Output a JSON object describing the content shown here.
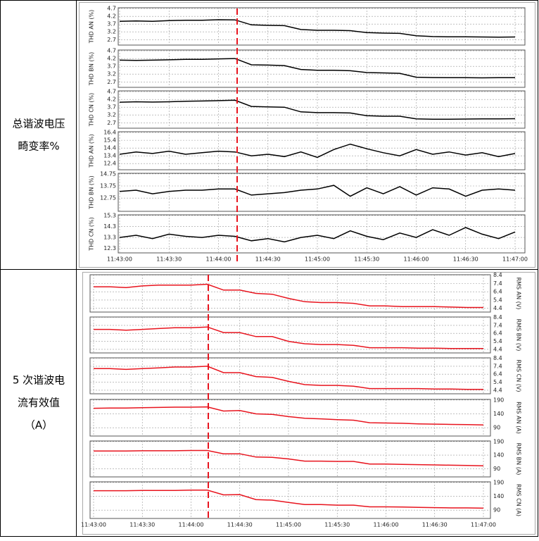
{
  "table": {
    "rows": [
      {
        "label": [
          "总谐波电压",
          "畸变率%"
        ]
      },
      {
        "label": [
          "5 次谐波电",
          "流有效值",
          "（A）"
        ]
      }
    ]
  },
  "chart_data": [
    {
      "type": "line",
      "ylabel": "THD AN (%)",
      "yaxis_side": "left",
      "color": "#000000",
      "ylim": [
        2.35,
        4.75
      ],
      "yticks": [
        4.7,
        4.2,
        3.7,
        3.2,
        2.7
      ],
      "grid": true,
      "x": [
        "11:43:00",
        "11:43:10",
        "11:43:20",
        "11:43:30",
        "11:43:40",
        "11:43:50",
        "11:44:00",
        "11:44:10",
        "11:44:20",
        "11:44:30",
        "11:44:40",
        "11:44:50",
        "11:45:00",
        "11:45:10",
        "11:45:20",
        "11:45:30",
        "11:45:40",
        "11:45:50",
        "11:46:00",
        "11:46:10",
        "11:46:20",
        "11:46:30",
        "11:46:40",
        "11:46:50",
        "11:47:00"
      ],
      "values": [
        3.88,
        3.9,
        3.88,
        3.92,
        3.95,
        3.95,
        3.98,
        3.97,
        3.65,
        3.62,
        3.6,
        3.35,
        3.3,
        3.3,
        3.28,
        3.15,
        3.12,
        3.1,
        2.95,
        2.9,
        2.88,
        2.88,
        2.87,
        2.86,
        2.87
      ]
    },
    {
      "type": "line",
      "ylabel": "THD BN (%)",
      "yaxis_side": "left",
      "color": "#000000",
      "ylim": [
        2.35,
        4.75
      ],
      "yticks": [
        4.7,
        4.2,
        3.7,
        3.2,
        2.7
      ],
      "grid": true,
      "x": [
        "11:43:00",
        "11:43:10",
        "11:43:20",
        "11:43:30",
        "11:43:40",
        "11:43:50",
        "11:44:00",
        "11:44:10",
        "11:44:20",
        "11:44:30",
        "11:44:40",
        "11:44:50",
        "11:45:00",
        "11:45:10",
        "11:45:20",
        "11:45:30",
        "11:45:40",
        "11:45:50",
        "11:46:00",
        "11:46:10",
        "11:46:20",
        "11:46:30",
        "11:46:40",
        "11:46:50",
        "11:47:00"
      ],
      "values": [
        4.1,
        4.08,
        4.1,
        4.12,
        4.15,
        4.15,
        4.18,
        4.2,
        3.8,
        3.78,
        3.75,
        3.5,
        3.45,
        3.45,
        3.42,
        3.3,
        3.28,
        3.25,
        3.0,
        2.98,
        2.97,
        2.97,
        2.96,
        2.97,
        2.97
      ]
    },
    {
      "type": "line",
      "ylabel": "THD CN (%)",
      "yaxis_side": "left",
      "color": "#000000",
      "ylim": [
        2.35,
        4.75
      ],
      "yticks": [
        4.7,
        4.2,
        3.7,
        3.2,
        2.7
      ],
      "grid": true,
      "x": [
        "11:43:00",
        "11:43:10",
        "11:43:20",
        "11:43:30",
        "11:43:40",
        "11:43:50",
        "11:44:00",
        "11:44:10",
        "11:44:20",
        "11:44:30",
        "11:44:40",
        "11:44:50",
        "11:45:00",
        "11:45:10",
        "11:45:20",
        "11:45:30",
        "11:45:40",
        "11:45:50",
        "11:46:00",
        "11:46:10",
        "11:46:20",
        "11:46:30",
        "11:46:40",
        "11:46:50",
        "11:47:00"
      ],
      "values": [
        4.02,
        4.05,
        4.03,
        4.05,
        4.08,
        4.1,
        4.12,
        4.15,
        3.75,
        3.72,
        3.7,
        3.4,
        3.35,
        3.35,
        3.33,
        3.15,
        3.12,
        3.12,
        2.95,
        2.93,
        2.93,
        2.94,
        2.95,
        2.95,
        2.96
      ]
    },
    {
      "type": "line",
      "ylabel": "THD AN (%)",
      "yaxis_side": "left",
      "color": "#000000",
      "ylim": [
        11.6,
        16.5
      ],
      "yticks": [
        16.4,
        15.4,
        14.4,
        13.4,
        12.4
      ],
      "grid": true,
      "x": [
        "11:43:00",
        "11:43:10",
        "11:43:20",
        "11:43:30",
        "11:43:40",
        "11:43:50",
        "11:44:00",
        "11:44:10",
        "11:44:20",
        "11:44:30",
        "11:44:40",
        "11:44:50",
        "11:45:00",
        "11:45:10",
        "11:45:20",
        "11:45:30",
        "11:45:40",
        "11:45:50",
        "11:46:00",
        "11:46:10",
        "11:46:20",
        "11:46:30",
        "11:46:40",
        "11:46:50",
        "11:47:00"
      ],
      "values": [
        13.6,
        13.9,
        13.7,
        14.0,
        13.6,
        13.8,
        14.0,
        13.9,
        13.4,
        13.6,
        13.3,
        13.9,
        13.2,
        14.2,
        14.9,
        14.3,
        13.8,
        13.4,
        14.2,
        13.6,
        13.9,
        13.5,
        13.8,
        13.3,
        13.7
      ]
    },
    {
      "type": "line",
      "ylabel": "THD BN (%)",
      "yaxis_side": "left",
      "color": "#000000",
      "ylim": [
        11.65,
        14.8
      ],
      "yticks": [
        14.75,
        13.75,
        12.75
      ],
      "grid": true,
      "x": [
        "11:43:00",
        "11:43:10",
        "11:43:20",
        "11:43:30",
        "11:43:40",
        "11:43:50",
        "11:44:00",
        "11:44:10",
        "11:44:20",
        "11:44:30",
        "11:44:40",
        "11:44:50",
        "11:45:00",
        "11:45:10",
        "11:45:20",
        "11:45:30",
        "11:45:40",
        "11:45:50",
        "11:46:00",
        "11:46:10",
        "11:46:20",
        "11:46:30",
        "11:46:40",
        "11:46:50",
        "11:47:00"
      ],
      "values": [
        13.3,
        13.4,
        13.1,
        13.3,
        13.4,
        13.4,
        13.5,
        13.5,
        13.0,
        13.1,
        13.2,
        13.4,
        13.5,
        13.8,
        12.9,
        13.6,
        13.1,
        13.7,
        13.0,
        13.6,
        13.5,
        12.9,
        13.4,
        13.5,
        13.4
      ]
    },
    {
      "type": "line",
      "ylabel": "THD CN (%)",
      "yaxis_side": "left",
      "color": "#000000",
      "ylim": [
        11.9,
        15.35
      ],
      "yticks": [
        15.3,
        14.3,
        13.3,
        12.3
      ],
      "grid": true,
      "x": [
        "11:43:00",
        "11:43:10",
        "11:43:20",
        "11:43:30",
        "11:43:40",
        "11:43:50",
        "11:44:00",
        "11:44:10",
        "11:44:20",
        "11:44:30",
        "11:44:40",
        "11:44:50",
        "11:45:00",
        "11:45:10",
        "11:45:20",
        "11:45:30",
        "11:45:40",
        "11:45:50",
        "11:46:00",
        "11:46:10",
        "11:46:20",
        "11:46:30",
        "11:46:40",
        "11:46:50",
        "11:47:00"
      ],
      "values": [
        13.3,
        13.5,
        13.2,
        13.6,
        13.4,
        13.3,
        13.5,
        13.4,
        13.0,
        13.2,
        12.9,
        13.3,
        13.5,
        13.2,
        13.9,
        13.4,
        13.1,
        13.7,
        13.3,
        14.0,
        13.5,
        14.2,
        13.6,
        13.2,
        13.8
      ],
      "xticks": [
        "11:43:00",
        "11:43:30",
        "11:44:00",
        "11:44:30",
        "11:45:00",
        "11:45:30",
        "11:46:00",
        "11:46:30",
        "11:47:00"
      ]
    },
    {
      "type": "line",
      "ylabel": "RMS AN (V)",
      "yaxis_side": "right",
      "color": "#e8141e",
      "ylim": [
        3.95,
        8.45
      ],
      "yticks": [
        8.4,
        7.4,
        6.4,
        5.4,
        4.4
      ],
      "grid": true,
      "x": [
        "11:43:00",
        "11:43:10",
        "11:43:20",
        "11:43:30",
        "11:43:40",
        "11:43:50",
        "11:44:00",
        "11:44:10",
        "11:44:20",
        "11:44:30",
        "11:44:40",
        "11:44:50",
        "11:45:00",
        "11:45:10",
        "11:45:20",
        "11:45:30",
        "11:45:40",
        "11:45:50",
        "11:46:00",
        "11:46:10",
        "11:46:20",
        "11:46:30",
        "11:46:40",
        "11:46:50",
        "11:47:00"
      ],
      "values": [
        7.0,
        7.0,
        6.9,
        7.1,
        7.2,
        7.2,
        7.2,
        7.3,
        6.6,
        6.6,
        6.2,
        6.1,
        5.6,
        5.2,
        5.1,
        5.1,
        5.0,
        4.7,
        4.7,
        4.6,
        4.6,
        4.6,
        4.55,
        4.5,
        4.5
      ]
    },
    {
      "type": "line",
      "ylabel": "RMS BN (V)",
      "yaxis_side": "right",
      "color": "#e8141e",
      "ylim": [
        3.95,
        8.45
      ],
      "yticks": [
        8.4,
        7.4,
        6.4,
        5.4,
        4.4
      ],
      "grid": true,
      "x": [
        "11:43:00",
        "11:43:10",
        "11:43:20",
        "11:43:30",
        "11:43:40",
        "11:43:50",
        "11:44:00",
        "11:44:10",
        "11:44:20",
        "11:44:30",
        "11:44:40",
        "11:44:50",
        "11:45:00",
        "11:45:10",
        "11:45:20",
        "11:45:30",
        "11:45:40",
        "11:45:50",
        "11:46:00",
        "11:46:10",
        "11:46:20",
        "11:46:30",
        "11:46:40",
        "11:46:50",
        "11:47:00"
      ],
      "values": [
        6.9,
        6.9,
        6.8,
        6.9,
        7.0,
        7.1,
        7.1,
        7.2,
        6.5,
        6.5,
        6.0,
        6.0,
        5.4,
        5.1,
        5.0,
        5.0,
        4.9,
        4.6,
        4.6,
        4.6,
        4.55,
        4.55,
        4.5,
        4.5,
        4.5
      ]
    },
    {
      "type": "line",
      "ylabel": "RMS CN (V)",
      "yaxis_side": "right",
      "color": "#e8141e",
      "ylim": [
        3.95,
        8.45
      ],
      "yticks": [
        8.4,
        7.4,
        6.4,
        5.4,
        4.4
      ],
      "grid": true,
      "x": [
        "11:43:00",
        "11:43:10",
        "11:43:20",
        "11:43:30",
        "11:43:40",
        "11:43:50",
        "11:44:00",
        "11:44:10",
        "11:44:20",
        "11:44:30",
        "11:44:40",
        "11:44:50",
        "11:45:00",
        "11:45:10",
        "11:45:20",
        "11:45:30",
        "11:45:40",
        "11:45:50",
        "11:46:00",
        "11:46:10",
        "11:46:20",
        "11:46:30",
        "11:46:40",
        "11:46:50",
        "11:47:00"
      ],
      "values": [
        7.1,
        7.1,
        7.0,
        7.1,
        7.2,
        7.3,
        7.3,
        7.4,
        6.6,
        6.6,
        6.1,
        6.0,
        5.5,
        5.1,
        5.0,
        5.0,
        4.9,
        4.6,
        4.6,
        4.6,
        4.6,
        4.55,
        4.55,
        4.5,
        4.5
      ]
    },
    {
      "type": "line",
      "ylabel": "RMS AN (A)",
      "yaxis_side": "right",
      "color": "#e8141e",
      "ylim": [
        60,
        192
      ],
      "yticks": [
        190,
        140,
        90
      ],
      "grid": true,
      "x": [
        "11:43:00",
        "11:43:10",
        "11:43:20",
        "11:43:30",
        "11:43:40",
        "11:43:50",
        "11:44:00",
        "11:44:10",
        "11:44:20",
        "11:44:30",
        "11:44:40",
        "11:44:50",
        "11:45:00",
        "11:45:10",
        "11:45:20",
        "11:45:30",
        "11:45:40",
        "11:45:50",
        "11:46:00",
        "11:46:10",
        "11:46:20",
        "11:46:30",
        "11:46:40",
        "11:46:50",
        "11:47:00"
      ],
      "values": [
        160,
        161,
        161,
        162,
        163,
        164,
        164,
        165,
        150,
        152,
        140,
        138,
        130,
        124,
        122,
        119,
        117,
        108,
        107,
        106,
        104,
        103,
        102,
        101,
        100
      ]
    },
    {
      "type": "line",
      "ylabel": "RMS BN (A)",
      "yaxis_side": "right",
      "color": "#e8141e",
      "ylim": [
        60,
        192
      ],
      "yticks": [
        190,
        140,
        90
      ],
      "grid": true,
      "x": [
        "11:43:00",
        "11:43:10",
        "11:43:20",
        "11:43:30",
        "11:43:40",
        "11:43:50",
        "11:44:00",
        "11:44:10",
        "11:44:20",
        "11:44:30",
        "11:44:40",
        "11:44:50",
        "11:45:00",
        "11:45:10",
        "11:45:20",
        "11:45:30",
        "11:45:40",
        "11:45:50",
        "11:46:00",
        "11:46:10",
        "11:46:20",
        "11:46:30",
        "11:46:40",
        "11:46:50",
        "11:47:00"
      ],
      "values": [
        155,
        155,
        155,
        156,
        156,
        156,
        157,
        157,
        145,
        145,
        133,
        132,
        126,
        118,
        118,
        117,
        117,
        107,
        107,
        106,
        105,
        104,
        103,
        102,
        101
      ]
    },
    {
      "type": "line",
      "ylabel": "RMS CN (A)",
      "yaxis_side": "right",
      "color": "#e8141e",
      "ylim": [
        60,
        192
      ],
      "yticks": [
        190,
        140,
        90
      ],
      "grid": true,
      "x": [
        "11:43:00",
        "11:43:10",
        "11:43:20",
        "11:43:30",
        "11:43:40",
        "11:43:50",
        "11:44:00",
        "11:44:10",
        "11:44:20",
        "11:44:30",
        "11:44:40",
        "11:44:50",
        "11:45:00",
        "11:45:10",
        "11:45:20",
        "11:45:30",
        "11:45:40",
        "11:45:50",
        "11:46:00",
        "11:46:10",
        "11:46:20",
        "11:46:30",
        "11:46:40",
        "11:46:50",
        "11:47:00"
      ],
      "values": [
        160,
        160,
        160,
        161,
        161,
        161,
        162,
        162,
        145,
        146,
        128,
        126,
        118,
        110,
        110,
        108,
        108,
        102,
        102,
        101,
        100,
        99,
        98,
        98,
        97
      ],
      "xticks": [
        "11:43:00",
        "11:43:30",
        "11:44:00",
        "11:44:30",
        "11:45:00",
        "11:45:30",
        "11:46:00",
        "11:46:30",
        "11:47:00"
      ]
    }
  ]
}
